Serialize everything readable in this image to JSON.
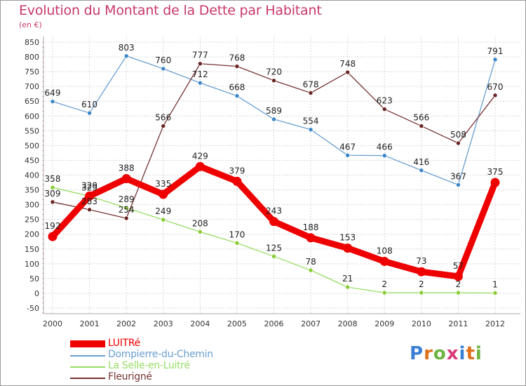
{
  "title": "Evolution du Montant de la Dette par Habitant",
  "unit": "(en €)",
  "logo": {
    "text": "Proxiti",
    "letter_colors": [
      "#3a7fd5",
      "#e0701a",
      "#6db33f",
      "#d83a7a",
      "#3a7fd5",
      "#e0701a",
      "#6db33f"
    ]
  },
  "legend": [
    {
      "label": "LUITRé",
      "color": "#ee0000",
      "thick": true
    },
    {
      "label": "Dompierre-du-Chemin",
      "color": "#6a9fd0",
      "thick": false
    },
    {
      "label": "La Selle-en-Luitré",
      "color": "#99dd66",
      "thick": false
    },
    {
      "label": "Fleurigné",
      "color": "#773333",
      "thick": false
    }
  ],
  "chart_data": {
    "type": "line",
    "title": "Evolution du Montant de la Dette par Habitant",
    "ylabel": "(en €)",
    "x": [
      "2000",
      "2001",
      "2002",
      "2003",
      "2004",
      "2005",
      "2006",
      "2007",
      "2008",
      "2009",
      "2010",
      "2011",
      "2012"
    ],
    "ylim": [
      -50,
      850
    ],
    "yticks": [
      -50,
      0,
      50,
      100,
      150,
      200,
      250,
      300,
      350,
      400,
      450,
      500,
      550,
      600,
      650,
      700,
      750,
      800,
      850
    ],
    "grid": true,
    "legend_position": "bottom-left",
    "series": [
      {
        "name": "Dompierre-du-Chemin",
        "color": "#6a9fd0",
        "point_color": "#3a86c8",
        "values": [
          649,
          610,
          803,
          760,
          712,
          668,
          589,
          554,
          467,
          466,
          416,
          367,
          791
        ]
      },
      {
        "name": "La Selle-en-Luitré",
        "color": "#99dd66",
        "point_color": "#88cc33",
        "values": [
          358,
          329,
          289,
          249,
          208,
          170,
          125,
          78,
          21,
          2,
          2,
          2,
          1
        ]
      },
      {
        "name": "Fleurigné",
        "color": "#773333",
        "point_color": "#6a2525",
        "values": [
          309,
          283,
          254,
          566,
          777,
          768,
          720,
          678,
          748,
          623,
          566,
          508,
          670
        ]
      },
      {
        "name": "LUITRé",
        "color": "#ee0000",
        "point_color": "#ee0000",
        "values": [
          192,
          329,
          388,
          335,
          429,
          379,
          243,
          188,
          153,
          108,
          73,
          57,
          375
        ]
      }
    ]
  }
}
